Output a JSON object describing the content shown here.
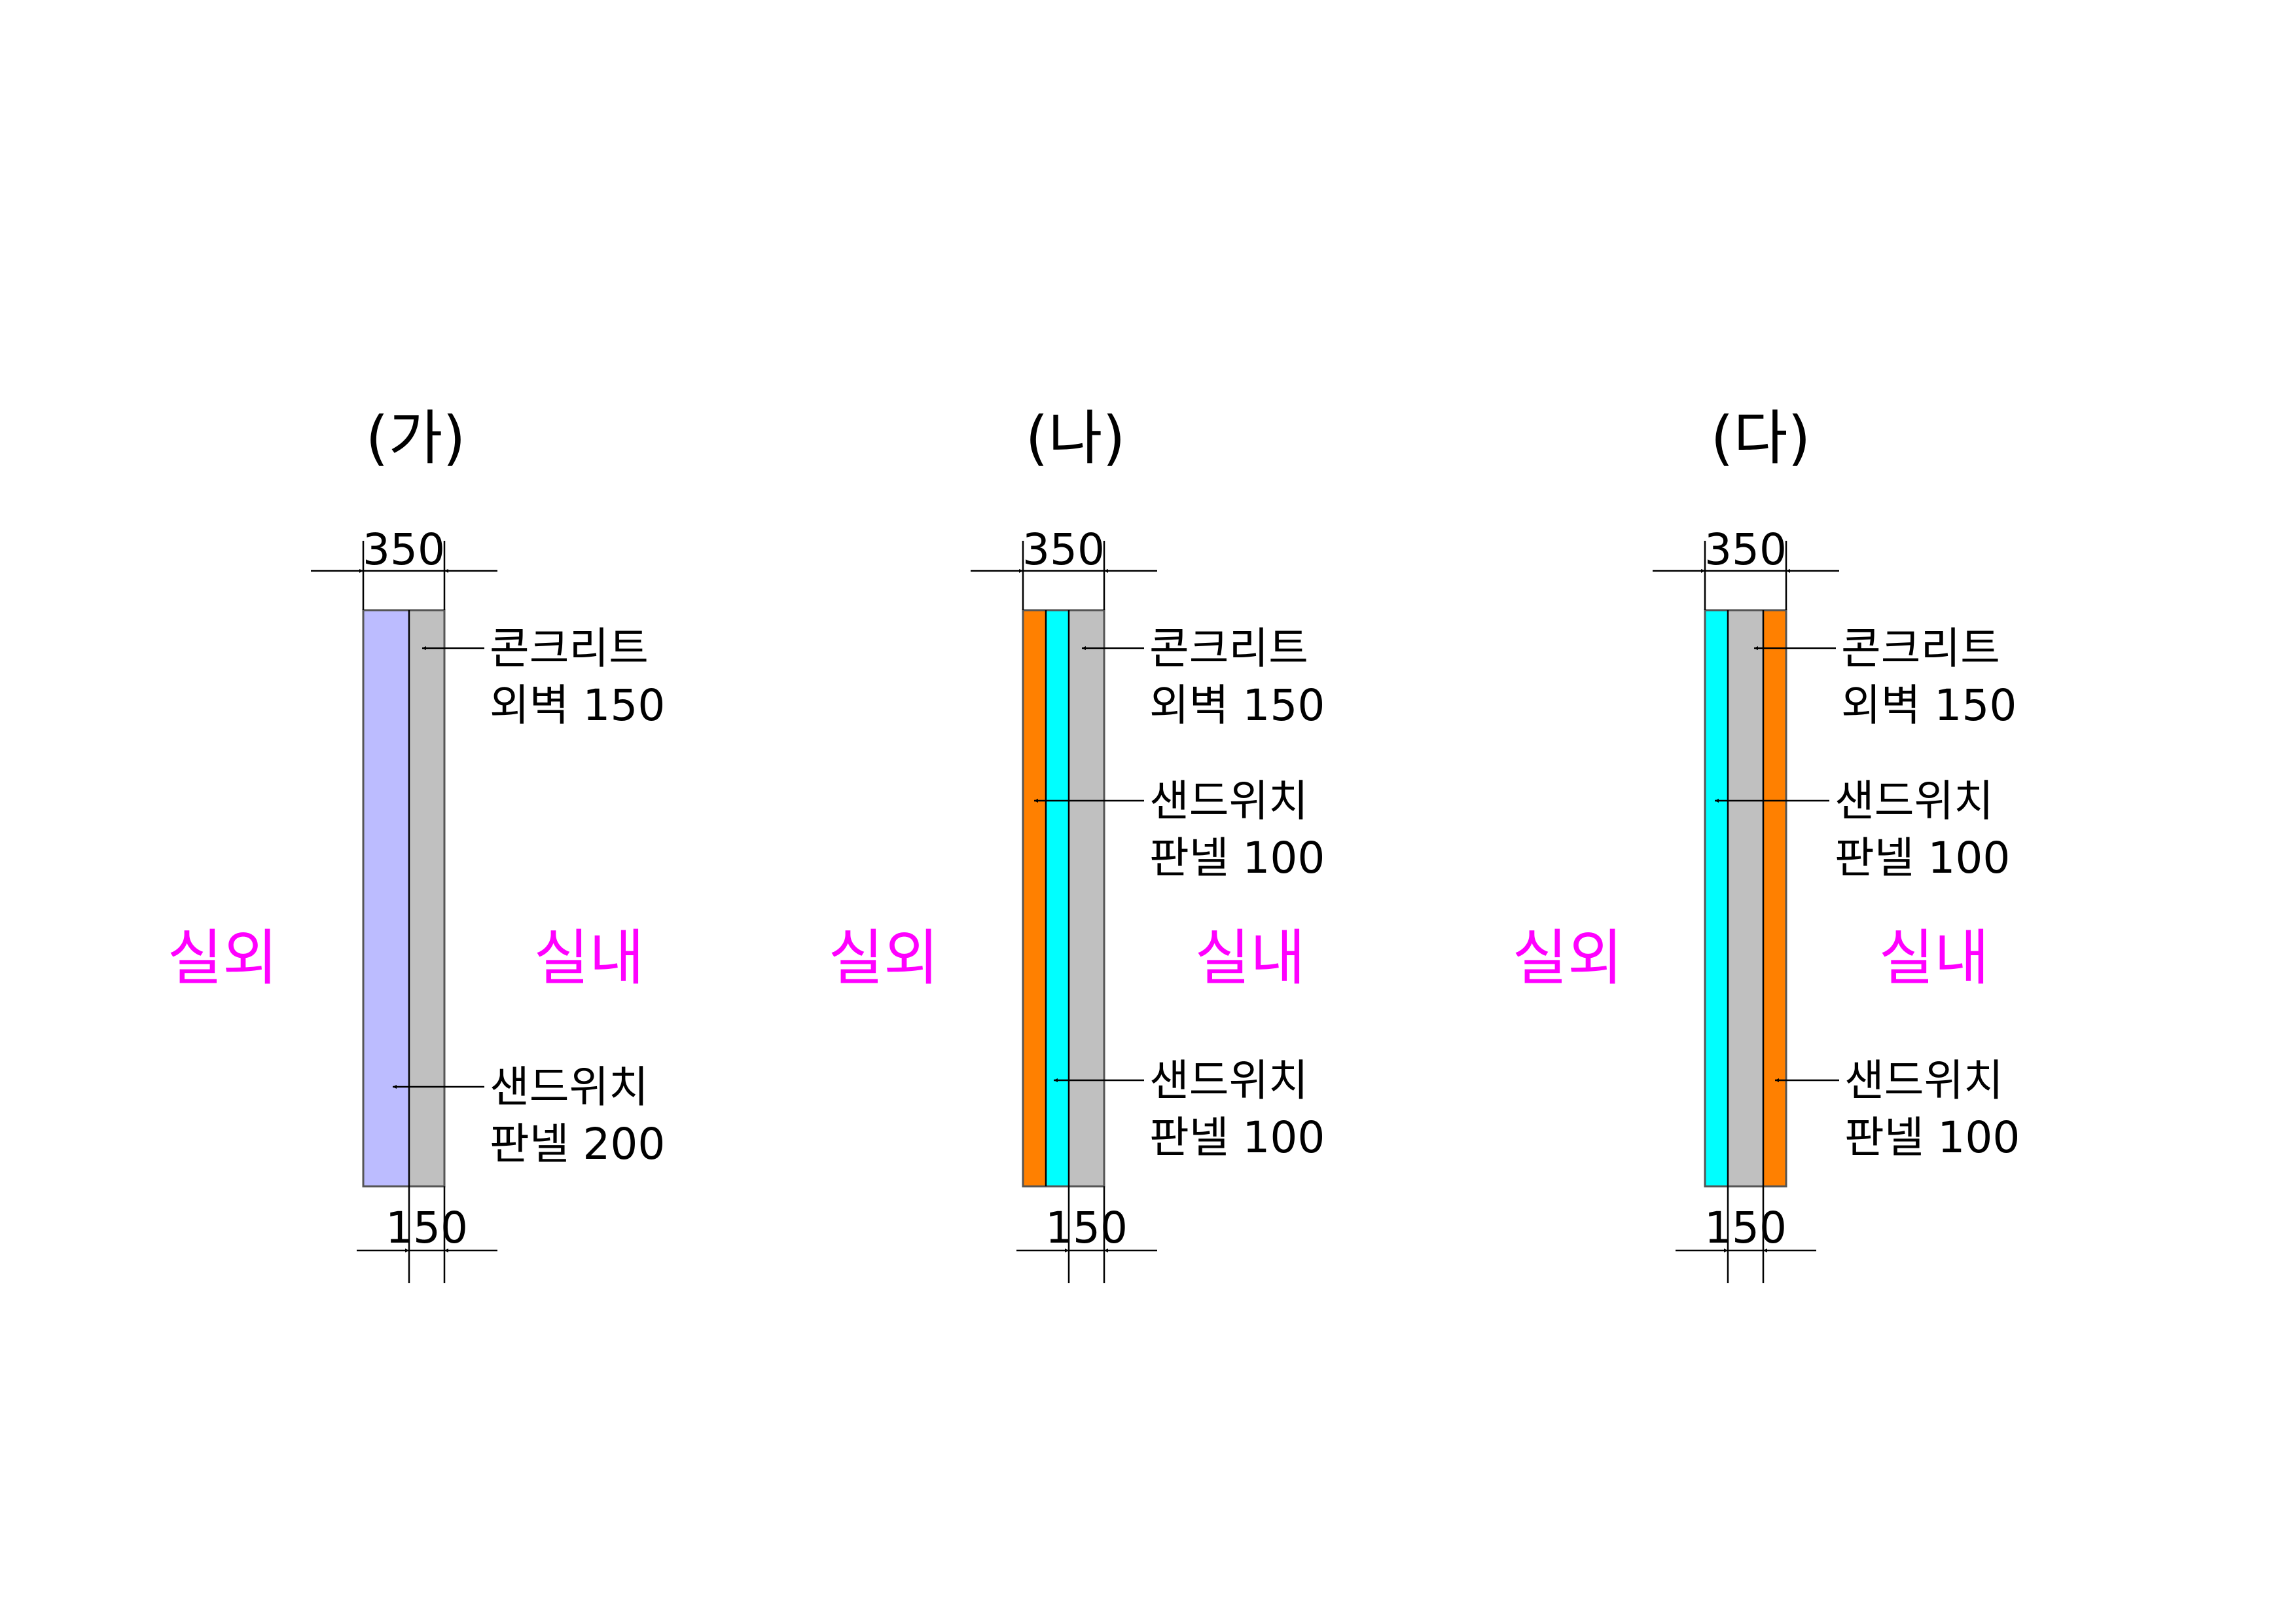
{
  "colors": {
    "concrete": "#c0c0c0",
    "panel_lavender": "#bcbcff",
    "panel_orange": "#ff8000",
    "panel_cyan": "#00ffff",
    "room_label": "#ff00ff",
    "line": "#000000"
  },
  "sections": [
    {
      "title": "(가)",
      "outside": "실외",
      "inside": "실내",
      "top_dimension": "350",
      "bottom_dimension": "150",
      "callouts": [
        {
          "line1": "콘크리트",
          "line2": "외벽 150"
        },
        {
          "line1": "샌드위치",
          "line2": "판넬 200"
        }
      ]
    },
    {
      "title": "(나)",
      "outside": "실외",
      "inside": "실내",
      "top_dimension": "350",
      "bottom_dimension": "150",
      "callouts": [
        {
          "line1": "콘크리트",
          "line2": "외벽 150"
        },
        {
          "line1": "샌드위치",
          "line2": "판넬 100"
        },
        {
          "line1": "샌드위치",
          "line2": "판넬 100"
        }
      ]
    },
    {
      "title": "(다)",
      "outside": "실외",
      "inside": "실내",
      "top_dimension": "350",
      "bottom_dimension": "150",
      "callouts": [
        {
          "line1": "콘크리트",
          "line2": "외벽 150"
        },
        {
          "line1": "샌드위치",
          "line2": "판넬 100"
        },
        {
          "line1": "샌드위치",
          "line2": "판넬 100"
        }
      ]
    }
  ]
}
